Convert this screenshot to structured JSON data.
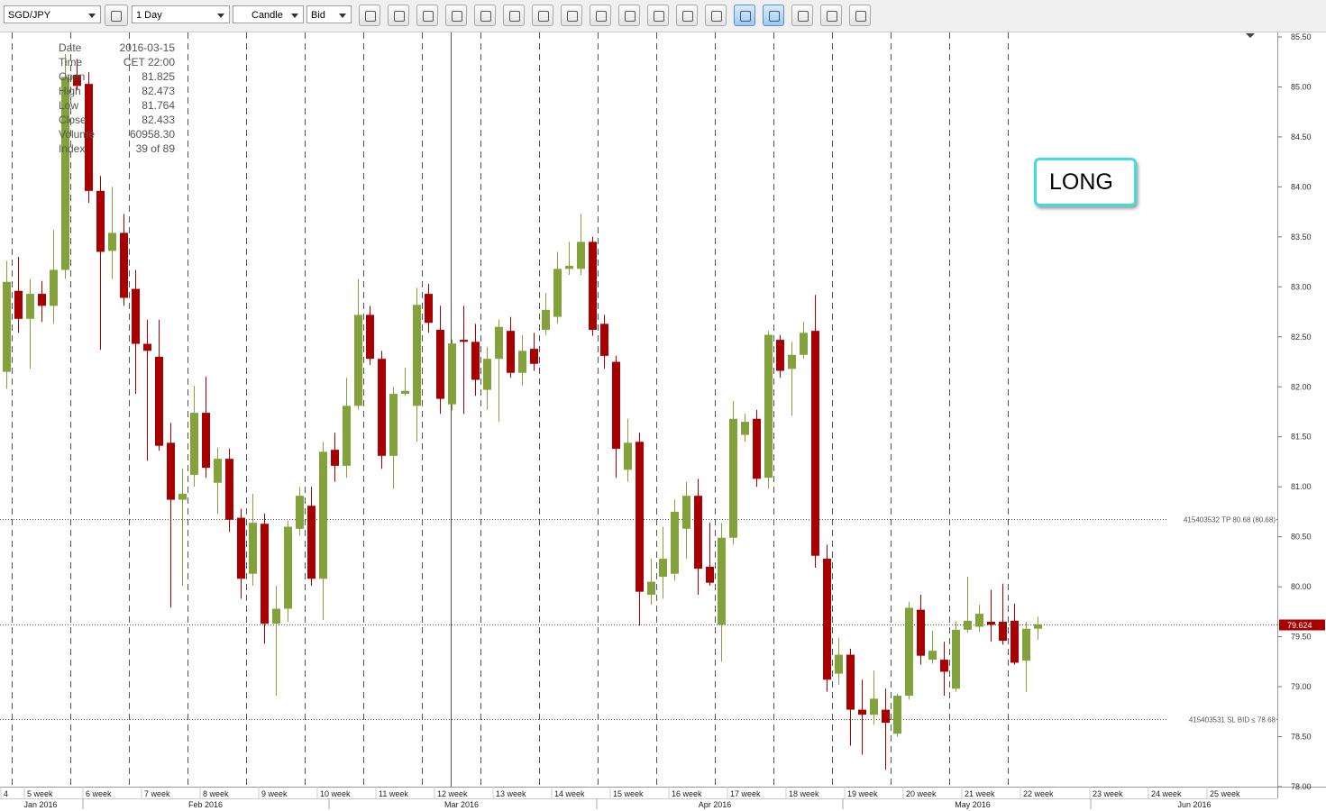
{
  "toolbar": {
    "symbol": "SGD/JPY",
    "period": "1 Day",
    "chart_style": "Candle",
    "side": "Bid"
  },
  "chart_data": {
    "type": "candlestick",
    "up_color": "#84a23c",
    "down_color": "#a80000",
    "open": [
      82.15,
      82.96,
      82.68,
      82.93,
      82.81,
      83.17,
      85.12,
      85.03,
      83.96,
      83.36,
      83.54,
      82.98,
      82.43,
      82.3,
      81.44,
      80.87,
      81.12,
      81.74,
      81.04,
      81.28,
      80.69,
      80.13,
      80.63,
      79.63,
      79.78,
      80.58,
      80.81,
      80.08,
      81.37,
      81.21,
      81.81,
      82.72,
      82.28,
      81.31,
      81.93,
      81.81,
      82.93,
      82.57,
      81.825,
      82.47,
      82.45,
      81.97,
      82.28,
      82.56,
      82.14,
      82.38,
      82.57,
      82.7,
      83.18,
      83.18,
      83.45,
      82.63,
      82.25,
      81.17,
      81.45,
      79.92,
      80.1,
      80.13,
      80.58,
      80.91,
      80.2,
      79.62,
      80.49,
      81.52,
      81.68,
      81.09,
      82.47,
      82.18,
      82.32,
      82.56,
      80.28,
      79.13,
      79.32,
      78.77,
      78.72,
      78.77,
      78.53,
      78.91,
      79.77,
      79.27,
      79.27,
      78.98,
      79.57,
      79.6,
      79.65,
      79.65,
      79.66,
      79.26,
      79.58
    ],
    "high": [
      83.26,
      83.3,
      83.08,
      83.06,
      83.57,
      85.33,
      85.28,
      85.15,
      84.11,
      84.0,
      83.73,
      83.17,
      82.67,
      82.67,
      81.64,
      81.18,
      82.01,
      82.1,
      81.39,
      81.38,
      80.78,
      80.93,
      80.73,
      80.01,
      80.66,
      81.0,
      81.0,
      81.45,
      81.54,
      82.09,
      83.08,
      82.81,
      82.36,
      82.0,
      82.19,
      82.99,
      83.03,
      82.81,
      82.473,
      82.81,
      82.63,
      82.4,
      82.67,
      82.7,
      82.52,
      82.54,
      82.94,
      83.35,
      83.45,
      83.73,
      83.5,
      82.72,
      82.31,
      81.68,
      81.54,
      80.28,
      80.6,
      80.87,
      81.05,
      81.08,
      80.64,
      80.64,
      81.86,
      81.73,
      81.77,
      82.56,
      82.52,
      82.45,
      82.65,
      82.92,
      80.42,
      79.49,
      79.38,
      79.07,
      79.16,
      78.98,
      78.93,
      79.85,
      79.92,
      79.56,
      79.45,
      79.65,
      80.1,
      79.82,
      79.97,
      80.03,
      79.83,
      79.65,
      79.7
    ],
    "low": [
      81.98,
      82.54,
      82.18,
      82.65,
      82.63,
      83.08,
      84.97,
      83.84,
      82.37,
      83.08,
      82.81,
      81.93,
      81.26,
      81.36,
      79.79,
      80.01,
      81.0,
      81.09,
      80.73,
      80.55,
      79.88,
      80.01,
      79.43,
      78.91,
      79.65,
      80.51,
      80.01,
      79.67,
      81.05,
      81.09,
      81.77,
      82.22,
      81.18,
      80.98,
      81.91,
      81.45,
      82.54,
      81.73,
      81.764,
      81.73,
      81.91,
      81.77,
      81.65,
      82.09,
      82.01,
      82.16,
      82.52,
      82.63,
      83.12,
      83.12,
      82.51,
      82.18,
      81.09,
      81.05,
      79.61,
      79.82,
      79.88,
      80.06,
      80.28,
      79.92,
      80.01,
      79.25,
      80.42,
      81.45,
      81.0,
      80.98,
      82.09,
      81.71,
      82.28,
      80.19,
      78.95,
      79.02,
      78.41,
      78.32,
      78.62,
      78.17,
      78.5,
      78.87,
      79.22,
      79.23,
      78.91,
      78.95,
      79.54,
      79.55,
      79.45,
      79.42,
      79.22,
      78.95,
      79.47
    ],
    "close": [
      83.05,
      82.68,
      82.93,
      82.81,
      83.17,
      85.1,
      85.01,
      83.96,
      83.35,
      83.54,
      82.89,
      82.43,
      82.36,
      81.41,
      80.87,
      80.93,
      81.74,
      81.19,
      81.28,
      80.67,
      80.08,
      80.64,
      79.63,
      79.78,
      80.6,
      80.91,
      80.08,
      81.35,
      81.21,
      81.81,
      82.72,
      82.28,
      81.31,
      81.93,
      81.96,
      82.82,
      82.64,
      81.88,
      82.433,
      82.45,
      82.07,
      82.28,
      82.6,
      82.14,
      82.36,
      82.23,
      82.77,
      83.18,
      83.21,
      83.45,
      82.57,
      82.31,
      81.38,
      81.44,
      79.95,
      80.05,
      80.28,
      80.75,
      80.91,
      80.18,
      80.04,
      80.49,
      81.68,
      81.65,
      81.08,
      82.52,
      82.16,
      82.32,
      82.54,
      80.31,
      79.07,
      79.32,
      78.77,
      78.72,
      78.88,
      78.64,
      78.91,
      79.79,
      79.31,
      79.36,
      79.15,
      79.57,
      79.66,
      79.73,
      79.62,
      79.46,
      79.24,
      79.58,
      79.624
    ],
    "ylim": [
      78.0,
      85.545
    ],
    "yticks": [
      {
        "value": 78.0,
        "label": "78.00"
      },
      {
        "value": 78.5,
        "label": "78.50"
      },
      {
        "value": 79.0,
        "label": "79.00"
      },
      {
        "value": 79.5,
        "label": "79.50"
      },
      {
        "value": 80.0,
        "label": "80.00"
      },
      {
        "value": 80.5,
        "label": "80.50"
      },
      {
        "value": 81.0,
        "label": "81.00"
      },
      {
        "value": 81.5,
        "label": "81.50"
      },
      {
        "value": 82.0,
        "label": "82.00"
      },
      {
        "value": 82.5,
        "label": "82.50"
      },
      {
        "value": 83.0,
        "label": "83.00"
      },
      {
        "value": 83.5,
        "label": "83.50"
      },
      {
        "value": 84.0,
        "label": "84.00"
      },
      {
        "value": 84.5,
        "label": "84.50"
      },
      {
        "value": 85.0,
        "label": "85.00"
      },
      {
        "value": 85.5,
        "label": "85.50"
      }
    ],
    "week_labels": [
      "4",
      "5 week",
      "6 week",
      "7 week",
      "8 week",
      "9 week",
      "10 week",
      "11 week",
      "12 week",
      "13 week",
      "14 week",
      "15 week",
      "16 week",
      "17 week",
      "18 week",
      "19 week",
      "20 week",
      "21 week",
      "22 week",
      "23 week",
      "24 week",
      "25 week"
    ],
    "month_labels": [
      "Jan 2016",
      "Feb 2016",
      "Mar 2016",
      "Apr 2016",
      "May 2016",
      "Jun 2016"
    ],
    "levels": [
      {
        "value": 80.68,
        "label": "415403532 TP 80.68 (80.68)"
      },
      {
        "value": 78.68,
        "label": "415403531 SL BID ≤ 78.68"
      }
    ],
    "current_price": 79.624,
    "annotation": "LONG",
    "info": [
      {
        "label": "Date",
        "value": "2016-03-15"
      },
      {
        "label": "Time",
        "value": "CET 22:00"
      },
      {
        "label": "Open",
        "value": "81.825"
      },
      {
        "label": "High",
        "value": "82.473"
      },
      {
        "label": "Low",
        "value": "81.764"
      },
      {
        "label": "Close",
        "value": "82.433"
      },
      {
        "label": "Volume",
        "value": "60958.30"
      },
      {
        "label": "Index",
        "value": "39 of 89"
      }
    ]
  }
}
